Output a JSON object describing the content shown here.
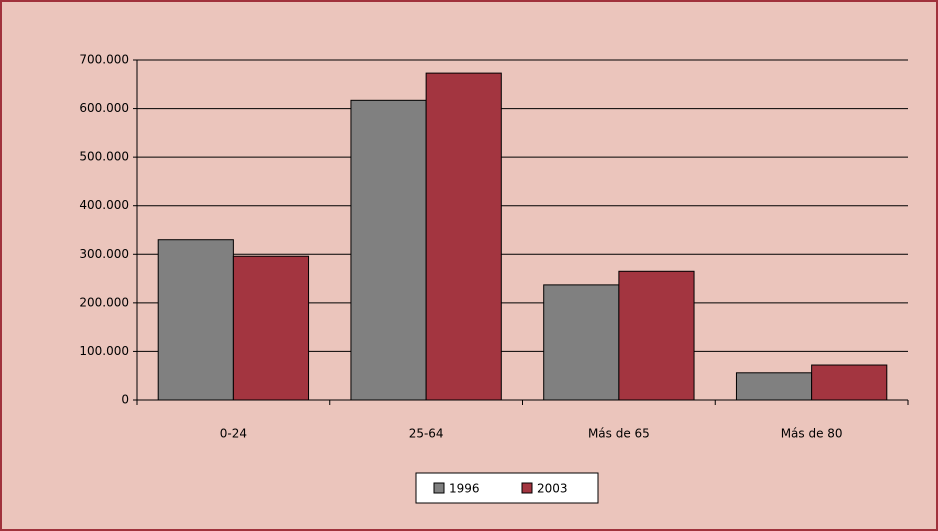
{
  "chart_data": {
    "type": "bar",
    "categories": [
      "0-24",
      "25-64",
      "Más de 65",
      "Más de 80"
    ],
    "series": [
      {
        "name": "1996",
        "color": "#808080",
        "values": [
          330000,
          617000,
          237000,
          56000
        ]
      },
      {
        "name": "2003",
        "color": "#a33540",
        "values": [
          296000,
          673000,
          265000,
          72000
        ]
      }
    ],
    "ylim": [
      0,
      700000
    ],
    "yticks": [
      0,
      {
        "value": 100000,
        "label": "100.000"
      },
      {
        "value": 200000,
        "label": "200.000"
      },
      {
        "value": 300000,
        "label": "300.000"
      },
      {
        "value": 400000,
        "label": "400.000"
      },
      {
        "value": 500000,
        "label": "500.000"
      },
      {
        "value": 600000,
        "label": "600.000"
      },
      {
        "value": 700000,
        "label": "700.000"
      }
    ],
    "grid": true,
    "legend": "bottom"
  }
}
